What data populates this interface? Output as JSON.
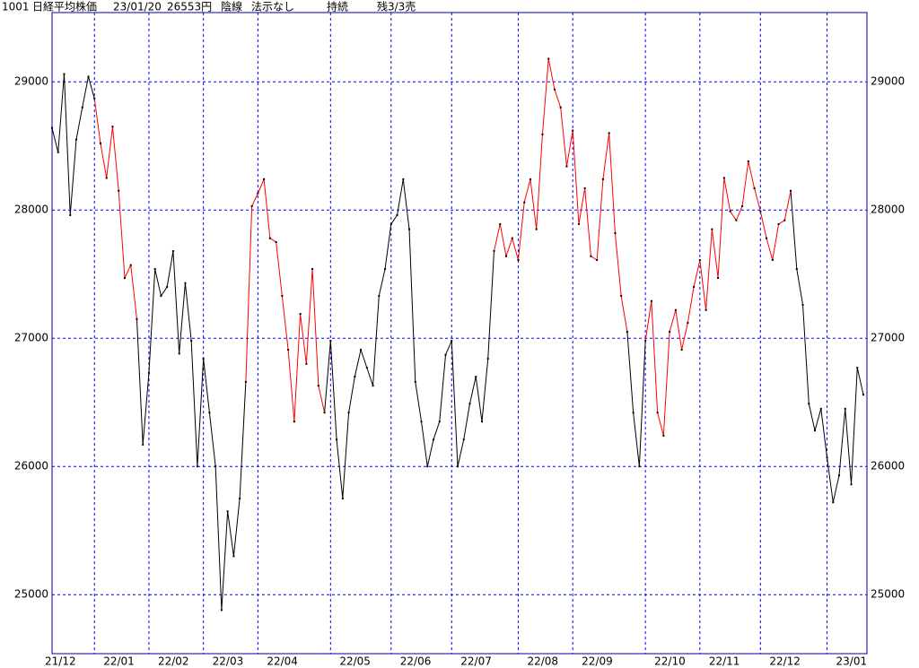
{
  "header": {
    "code": "1001",
    "name": "日経平均株価",
    "date": "23/01/20",
    "price": "26553円",
    "candle": "陰線",
    "note": "法示なし",
    "status": "持続",
    "remain": "残3/3売"
  },
  "chart_data": {
    "type": "line",
    "categories": [
      "21/12",
      null,
      null,
      null,
      null,
      null,
      null,
      "22/01",
      null,
      null,
      null,
      null,
      null,
      null,
      null,
      null,
      "22/02",
      null,
      null,
      null,
      null,
      null,
      null,
      null,
      null,
      "22/03",
      null,
      null,
      null,
      null,
      null,
      null,
      null,
      null,
      "22/04",
      null,
      null,
      null,
      null,
      null,
      null,
      null,
      null,
      null,
      null,
      null,
      "22/05",
      null,
      null,
      null,
      null,
      null,
      null,
      null,
      null,
      null,
      "22/06",
      null,
      null,
      null,
      null,
      null,
      null,
      null,
      null,
      null,
      "22/07",
      null,
      null,
      null,
      null,
      null,
      null,
      null,
      null,
      null,
      null,
      "22/08",
      null,
      null,
      null,
      null,
      null,
      null,
      null,
      null,
      "22/09",
      null,
      null,
      null,
      null,
      null,
      null,
      null,
      null,
      null,
      null,
      null,
      "22/10",
      null,
      null,
      null,
      null,
      null,
      null,
      null,
      null,
      "22/11",
      null,
      null,
      null,
      null,
      null,
      null,
      null,
      null,
      null,
      "22/12",
      null,
      null,
      null,
      null,
      null,
      null,
      null,
      null,
      null,
      null,
      "23/01",
      null,
      null,
      null,
      null,
      null,
      null
    ],
    "series": [
      {
        "color": "#000000",
        "values": [
          28640,
          28450,
          29060,
          27960,
          28550,
          28800,
          29040,
          28870,
          null,
          null,
          null,
          null,
          null,
          null,
          27150,
          26170,
          26730,
          27540,
          27330,
          27400,
          27680,
          26880,
          27430,
          26980,
          26000,
          26840,
          26420,
          26000,
          24880,
          25650,
          25300,
          25750,
          26660,
          null,
          null,
          null,
          null,
          null,
          null,
          null,
          null,
          null,
          null,
          null,
          null,
          26420,
          26980,
          26210,
          25750,
          26420,
          26700,
          26910,
          26770,
          26630,
          27330,
          27540,
          27890,
          27960,
          28240,
          27850,
          26660,
          26350,
          26000,
          26210,
          26350,
          26870,
          26980,
          26000,
          26210,
          26490,
          26700,
          26350,
          26840,
          27680,
          null,
          null,
          null,
          null,
          null,
          null,
          null,
          null,
          null,
          null,
          null,
          null,
          null,
          null,
          null,
          null,
          null,
          null,
          null,
          null,
          null,
          27050,
          26420,
          26000,
          26980,
          null,
          null,
          null,
          null,
          null,
          null,
          null,
          null,
          null,
          null,
          null,
          null,
          null,
          null,
          null,
          null,
          null,
          null,
          null,
          null,
          null,
          null,
          null,
          28150,
          27540,
          27260,
          26490,
          26280,
          26450,
          26070,
          25720,
          25930,
          26450,
          25860,
          26770,
          26560
        ]
      },
      {
        "color": "#ff0000",
        "values": [
          null,
          null,
          null,
          null,
          null,
          null,
          null,
          28870,
          28520,
          28250,
          28650,
          28150,
          27470,
          27570,
          27150,
          null,
          null,
          null,
          null,
          null,
          null,
          null,
          null,
          null,
          null,
          null,
          null,
          null,
          null,
          null,
          null,
          null,
          26660,
          28030,
          28130,
          28240,
          27780,
          27750,
          27330,
          26910,
          26350,
          27190,
          26800,
          27540,
          26630,
          26420,
          null,
          null,
          null,
          null,
          null,
          null,
          null,
          null,
          null,
          null,
          null,
          null,
          null,
          null,
          null,
          null,
          null,
          null,
          null,
          null,
          null,
          null,
          null,
          null,
          null,
          null,
          null,
          27680,
          27890,
          27640,
          27780,
          27610,
          28060,
          28240,
          27850,
          28590,
          29180,
          28940,
          28800,
          28340,
          28620,
          27890,
          28170,
          27640,
          27610,
          28240,
          28600,
          27820,
          27330,
          27050,
          null,
          null,
          26980,
          27290,
          26420,
          26240,
          27050,
          27220,
          26910,
          27120,
          27400,
          27610,
          27220,
          27850,
          27470,
          28250,
          27990,
          27920,
          28030,
          28380,
          28170,
          27990,
          27780,
          27610,
          27890,
          27920,
          28150,
          null,
          null,
          null,
          null,
          null,
          null,
          null,
          null,
          null,
          null,
          null,
          null
        ]
      }
    ],
    "ylim": [
      24540,
      29540
    ],
    "yticks": [
      25000,
      26000,
      27000,
      28000,
      29000
    ],
    "grid": true,
    "grid_color": "#0000ff",
    "frame_color": "#0000a0",
    "marker_color": "#000000"
  }
}
